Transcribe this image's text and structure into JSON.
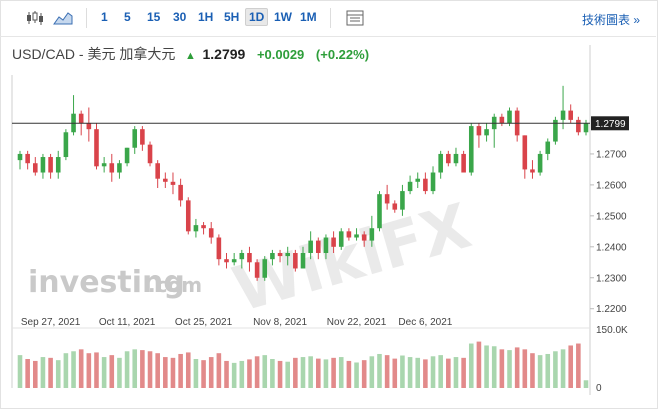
{
  "toolbar": {
    "timeframes": [
      "1",
      "5",
      "15",
      "30",
      "1H",
      "5H",
      "1D",
      "1W",
      "1M"
    ],
    "active_timeframe": "1D",
    "tech_link": "技術圖表 »",
    "icons": [
      "candlestick-icon",
      "area-chart-icon",
      "table-icon"
    ]
  },
  "header": {
    "symbol": "USD/CAD - 美元 加拿大元",
    "price": "1.2799",
    "change": "+0.0029",
    "change_pct": "(+0.22%)",
    "up_color": "#2e9e3a"
  },
  "watermarks": {
    "brand": "investing",
    "brand_suffix": ".com",
    "overlay": "WikiFX"
  },
  "chart_data": {
    "type": "candlestick",
    "price_axis": {
      "ticks": [
        "1.2700",
        "1.2600",
        "1.2500",
        "1.2400",
        "1.2300",
        "1.2200"
      ],
      "range": [
        1.217,
        1.2955
      ],
      "current": "1.2799"
    },
    "volume_axis": {
      "ticks": [
        "150.0K",
        "0"
      ]
    },
    "date_ticks": [
      "Sep 27, 2021",
      "Oct 11, 2021",
      "Oct 25, 2021",
      "Nov 8, 2021",
      "Nov 22, 2021",
      "Dec 6, 2021"
    ],
    "colors": {
      "up": "#3aa64a",
      "down": "#d9434a",
      "vol_up": "#a9d6ae",
      "vol_down": "#e28a8a"
    },
    "candles": [
      [
        1.268,
        1.27,
        1.265,
        1.271,
        85
      ],
      [
        1.27,
        1.267,
        1.265,
        1.271,
        75
      ],
      [
        1.267,
        1.264,
        1.263,
        1.269,
        70
      ],
      [
        1.264,
        1.269,
        1.262,
        1.27,
        80
      ],
      [
        1.269,
        1.264,
        1.262,
        1.27,
        78
      ],
      [
        1.264,
        1.269,
        1.262,
        1.271,
        72
      ],
      [
        1.269,
        1.277,
        1.268,
        1.278,
        90
      ],
      [
        1.277,
        1.283,
        1.276,
        1.289,
        95
      ],
      [
        1.283,
        1.28,
        1.276,
        1.284,
        100
      ],
      [
        1.28,
        1.278,
        1.274,
        1.285,
        90
      ],
      [
        1.278,
        1.266,
        1.265,
        1.28,
        92
      ],
      [
        1.266,
        1.267,
        1.264,
        1.269,
        80
      ],
      [
        1.267,
        1.264,
        1.261,
        1.27,
        85
      ],
      [
        1.264,
        1.267,
        1.262,
        1.268,
        78
      ],
      [
        1.267,
        1.272,
        1.266,
        1.272,
        95
      ],
      [
        1.272,
        1.278,
        1.27,
        1.279,
        100
      ],
      [
        1.278,
        1.273,
        1.271,
        1.279,
        98
      ],
      [
        1.273,
        1.267,
        1.266,
        1.274,
        95
      ],
      [
        1.267,
        1.262,
        1.259,
        1.268,
        90
      ],
      [
        1.262,
        1.261,
        1.259,
        1.264,
        80
      ],
      [
        1.261,
        1.26,
        1.257,
        1.264,
        78
      ],
      [
        1.26,
        1.255,
        1.253,
        1.262,
        88
      ],
      [
        1.255,
        1.245,
        1.244,
        1.256,
        92
      ],
      [
        1.245,
        1.247,
        1.243,
        1.249,
        75
      ],
      [
        1.247,
        1.246,
        1.244,
        1.248,
        72
      ],
      [
        1.246,
        1.243,
        1.241,
        1.248,
        80
      ],
      [
        1.243,
        1.236,
        1.234,
        1.244,
        90
      ],
      [
        1.236,
        1.235,
        1.233,
        1.238,
        70
      ],
      [
        1.235,
        1.236,
        1.234,
        1.238,
        65
      ],
      [
        1.236,
        1.238,
        1.233,
        1.239,
        70
      ],
      [
        1.238,
        1.235,
        1.232,
        1.24,
        74
      ],
      [
        1.235,
        1.23,
        1.229,
        1.236,
        82
      ],
      [
        1.23,
        1.236,
        1.229,
        1.237,
        85
      ],
      [
        1.236,
        1.238,
        1.234,
        1.239,
        75
      ],
      [
        1.238,
        1.237,
        1.235,
        1.239,
        70
      ],
      [
        1.237,
        1.238,
        1.234,
        1.24,
        68
      ],
      [
        1.238,
        1.233,
        1.232,
        1.239,
        78
      ],
      [
        1.233,
        1.238,
        1.233,
        1.24,
        80
      ],
      [
        1.238,
        1.242,
        1.236,
        1.245,
        82
      ],
      [
        1.242,
        1.238,
        1.236,
        1.243,
        76
      ],
      [
        1.238,
        1.243,
        1.236,
        1.244,
        74
      ],
      [
        1.243,
        1.24,
        1.238,
        1.245,
        78
      ],
      [
        1.24,
        1.245,
        1.239,
        1.246,
        80
      ],
      [
        1.245,
        1.243,
        1.242,
        1.246,
        70
      ],
      [
        1.243,
        1.244,
        1.242,
        1.246,
        66
      ],
      [
        1.244,
        1.242,
        1.24,
        1.245,
        72
      ],
      [
        1.242,
        1.246,
        1.24,
        1.25,
        82
      ],
      [
        1.246,
        1.257,
        1.245,
        1.258,
        88
      ],
      [
        1.257,
        1.254,
        1.252,
        1.26,
        85
      ],
      [
        1.254,
        1.252,
        1.251,
        1.255,
        76
      ],
      [
        1.252,
        1.258,
        1.25,
        1.26,
        84
      ],
      [
        1.258,
        1.261,
        1.257,
        1.263,
        80
      ],
      [
        1.261,
        1.262,
        1.259,
        1.264,
        78
      ],
      [
        1.262,
        1.258,
        1.257,
        1.264,
        74
      ],
      [
        1.258,
        1.264,
        1.257,
        1.266,
        82
      ],
      [
        1.264,
        1.27,
        1.262,
        1.271,
        85
      ],
      [
        1.27,
        1.267,
        1.266,
        1.271,
        76
      ],
      [
        1.267,
        1.27,
        1.266,
        1.272,
        80
      ],
      [
        1.27,
        1.264,
        1.264,
        1.271,
        78
      ],
      [
        1.264,
        1.279,
        1.263,
        1.28,
        115
      ],
      [
        1.279,
        1.276,
        1.272,
        1.28,
        120
      ],
      [
        1.276,
        1.278,
        1.274,
        1.28,
        110
      ],
      [
        1.278,
        1.282,
        1.272,
        1.283,
        108
      ],
      [
        1.282,
        1.28,
        1.279,
        1.283,
        100
      ],
      [
        1.28,
        1.284,
        1.279,
        1.285,
        98
      ],
      [
        1.284,
        1.276,
        1.274,
        1.285,
        105
      ],
      [
        1.276,
        1.265,
        1.262,
        1.276,
        100
      ],
      [
        1.265,
        1.264,
        1.262,
        1.268,
        90
      ],
      [
        1.264,
        1.27,
        1.263,
        1.271,
        85
      ],
      [
        1.27,
        1.274,
        1.268,
        1.275,
        88
      ],
      [
        1.274,
        1.281,
        1.273,
        1.282,
        95
      ],
      [
        1.281,
        1.284,
        1.278,
        1.292,
        100
      ],
      [
        1.284,
        1.281,
        1.28,
        1.286,
        110
      ],
      [
        1.281,
        1.277,
        1.276,
        1.282,
        115
      ],
      [
        1.277,
        1.2799,
        1.276,
        1.281,
        20
      ]
    ]
  }
}
